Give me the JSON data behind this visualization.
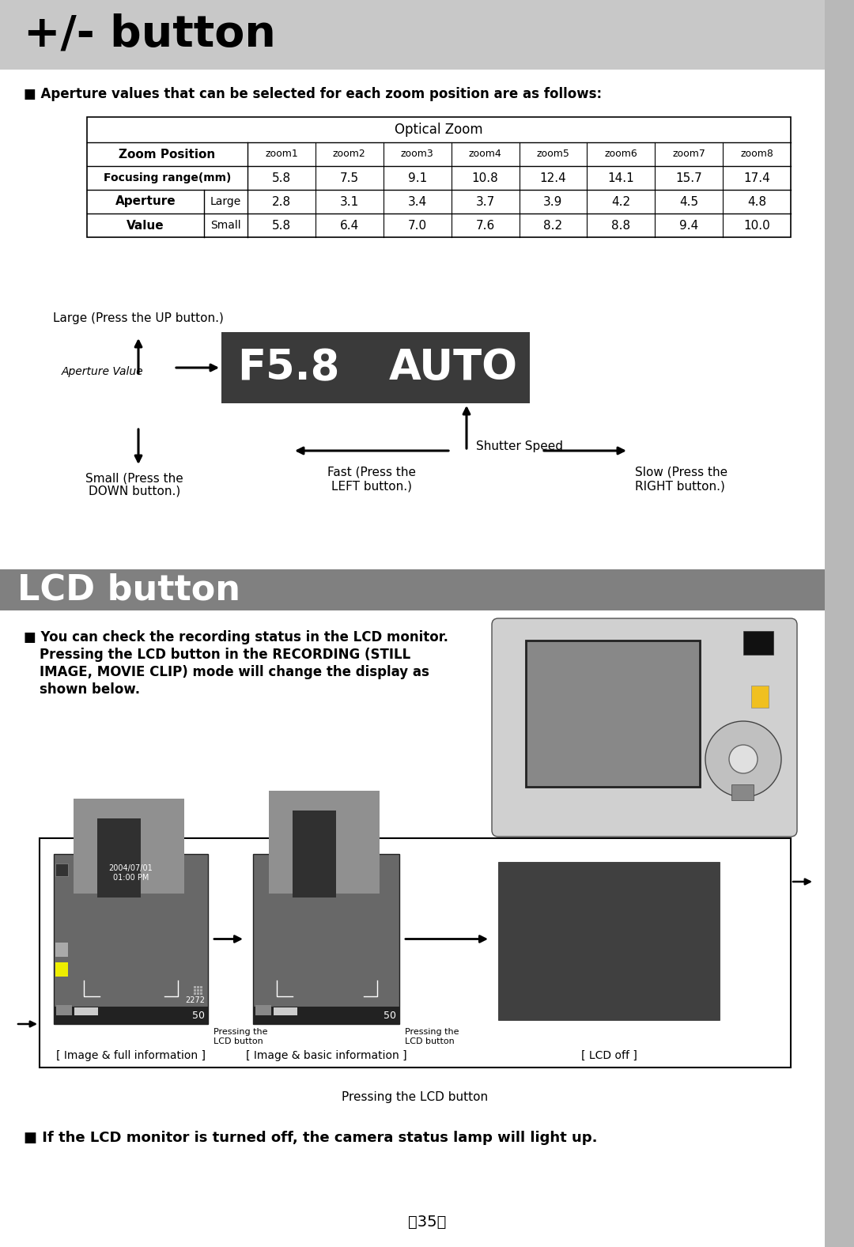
{
  "title_plus_minus": "+/- button",
  "title_lcd": "LCD button",
  "white": "#ffffff",
  "black": "#000000",
  "header_bar_color": "#c8c8c8",
  "lcd_header_color": "#808080",
  "bullet_text_aperture": "■ Aperture values that can be selected for each zoom position are as follows:",
  "table_header": "Optical Zoom",
  "col1_header": "Zoom Position",
  "col2_header": "Focusing range(mm)",
  "col3_label": "Aperture",
  "col4_label": "Value",
  "large_label": "Large",
  "small_label": "Small",
  "zoom_cols": [
    "zoom1",
    "zoom2",
    "zoom3",
    "zoom4",
    "zoom5",
    "zoom6",
    "zoom7",
    "zoom8"
  ],
  "focusing_range": [
    "5.8",
    "7.5",
    "9.1",
    "10.8",
    "12.4",
    "14.1",
    "15.7",
    "17.4"
  ],
  "aperture_large": [
    "2.8",
    "3.1",
    "3.4",
    "3.7",
    "3.9",
    "4.2",
    "4.5",
    "4.8"
  ],
  "aperture_small": [
    "5.8",
    "6.4",
    "7.0",
    "7.6",
    "8.2",
    "8.8",
    "9.4",
    "10.0"
  ],
  "display_text_f58": "F5.8",
  "display_text_auto": "AUTO",
  "display_bg": "#3a3a3a",
  "label_large_up": "Large (Press the UP button.)",
  "label_aperture_value": "Aperture Value",
  "label_small_down1": "Small (Press the",
  "label_small_down2": "DOWN button.)",
  "label_fast_left1": "Fast (Press the",
  "label_fast_left2": "LEFT button.)",
  "label_shutter_speed": "Shutter Speed",
  "label_slow_right1": "Slow (Press the",
  "label_slow_right2": "RIGHT button.)",
  "lcd_bullet_line1": "■ You can check the recording status in the LCD monitor.",
  "lcd_bullet_line2": "Pressing the LCD button in the RECORDING (STILL",
  "lcd_bullet_line3": "IMAGE, MOVIE CLIP) mode will change the display as",
  "lcd_bullet_line4": "shown below.",
  "caption1": "[ Image & full information ]",
  "caption2": "[ Image & basic information ]",
  "caption3": "[ LCD off ]",
  "pressing_the": "Pressing the",
  "lcd_button": "LCD button",
  "pressing_lcd_bottom": "Pressing the LCD button",
  "footer_text": "〈35〉",
  "footer_bullet": "■ If the LCD monitor is turned off, the camera status lamp will light up.",
  "side_bar_color": "#b8b8b8",
  "page_bg": "#ffffff"
}
